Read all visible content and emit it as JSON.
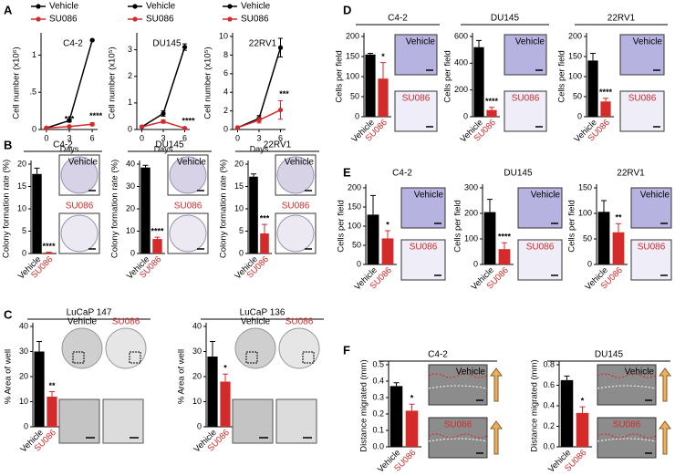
{
  "panel_letters": [
    "A",
    "B",
    "C",
    "D",
    "E",
    "F"
  ],
  "chart_data": [
    {
      "type": "line",
      "title": "C4-2",
      "ylabel": "Cell number (x10⁶)",
      "xlabel": "Days",
      "x": [
        0,
        3,
        6
      ],
      "xlim": [
        -0.7,
        6.7
      ],
      "xticks": [
        0,
        3,
        6
      ],
      "ylim": [
        0,
        1.25
      ],
      "yticks": [
        0,
        {
          "value": 0.5,
          "label": ".5"
        },
        1
      ],
      "series": [
        {
          "name": "Vehicle",
          "color": "#000000",
          "values": [
            0.02,
            0.12,
            1.2
          ],
          "errors": [
            0,
            0.02,
            0.01
          ]
        },
        {
          "name": "SU086",
          "color": "#d42a2a",
          "values": [
            0.02,
            0.04,
            0.07
          ],
          "errors": [
            0,
            0.01,
            0.02
          ]
        }
      ],
      "annotations": [
        {
          "x": 3,
          "text": "***"
        },
        {
          "x": 6,
          "text": "****"
        }
      ]
    },
    {
      "type": "line",
      "title": "DU145",
      "ylabel": "Cell number (x10⁵)",
      "xlabel": "Days",
      "x": [
        0,
        3,
        6
      ],
      "xlim": [
        -0.7,
        6.7
      ],
      "xticks": [
        0,
        3,
        6
      ],
      "ylim": [
        0,
        3.5
      ],
      "yticks": [
        0,
        1,
        2,
        3
      ],
      "series": [
        {
          "name": "Vehicle",
          "color": "#000000",
          "values": [
            0.1,
            0.6,
            3.1
          ],
          "errors": [
            0,
            0.1,
            0.12
          ]
        },
        {
          "name": "SU086",
          "color": "#d42a2a",
          "values": [
            0.1,
            0.3,
            0.05
          ],
          "errors": [
            0,
            0.06,
            0.02
          ]
        }
      ],
      "annotations": [
        {
          "x": 6,
          "text": "****"
        }
      ]
    },
    {
      "type": "line",
      "title": "22RV1",
      "ylabel": "Cell number (x10⁵)",
      "xlabel": "Days",
      "x": [
        0,
        3,
        6
      ],
      "xlim": [
        -0.7,
        6.7
      ],
      "xticks": [
        0,
        3,
        6
      ],
      "ylim": [
        0,
        10
      ],
      "yticks": [
        0,
        2,
        4,
        6,
        8,
        10
      ],
      "series": [
        {
          "name": "Vehicle",
          "color": "#000000",
          "values": [
            0.2,
            1.2,
            8.8
          ],
          "errors": [
            0,
            0.3,
            1.0
          ]
        },
        {
          "name": "SU086",
          "color": "#d42a2a",
          "values": [
            0.2,
            1.0,
            2.1
          ],
          "errors": [
            0,
            0.3,
            1.0
          ]
        }
      ],
      "annotations": [
        {
          "x": 6,
          "text": "***"
        }
      ]
    },
    {
      "type": "bar",
      "title": "C4-2",
      "ylabel": "Colony formation rate (%)",
      "categories": [
        "Vehicle",
        "SU086"
      ],
      "colors": [
        "#000000",
        "#d42a2a"
      ],
      "values": [
        17.8,
        0.2
      ],
      "errors": [
        1.3,
        0.1
      ],
      "annotations": [
        "",
        "****"
      ],
      "ylim": [
        0,
        20
      ],
      "yticks": [
        0,
        5,
        10,
        15,
        20
      ],
      "image_labels": [
        "Vehicle",
        "SU086"
      ]
    },
    {
      "type": "bar",
      "title": "DU145",
      "ylabel": "Colony formation rate (%)",
      "categories": [
        "Vehicle",
        "SU086"
      ],
      "colors": [
        "#000000",
        "#d42a2a"
      ],
      "values": [
        38.5,
        6.5
      ],
      "errors": [
        1.0,
        0.8
      ],
      "annotations": [
        "",
        "****"
      ],
      "ylim": [
        0,
        40
      ],
      "yticks": [
        0,
        10,
        20,
        30,
        40
      ],
      "image_labels": [
        "Vehicle",
        "SU086"
      ]
    },
    {
      "type": "bar",
      "title": "22RV1",
      "ylabel": "Colony formation rate (%)",
      "categories": [
        "Vehicle",
        "SU086"
      ],
      "colors": [
        "#000000",
        "#d42a2a"
      ],
      "values": [
        17.2,
        4.5
      ],
      "errors": [
        0.6,
        2.0
      ],
      "annotations": [
        "",
        "***"
      ],
      "ylim": [
        0,
        20
      ],
      "yticks": [
        0,
        5,
        10,
        15,
        20
      ],
      "image_labels": [
        "Vehicle",
        "SU086"
      ]
    },
    {
      "type": "bar",
      "title": "LuCaP 147",
      "ylabel": "% Area of well",
      "categories": [
        "Vehicle",
        "SU086"
      ],
      "colors": [
        "#000000",
        "#d42a2a"
      ],
      "values": [
        30,
        12
      ],
      "errors": [
        4,
        2
      ],
      "annotations": [
        "",
        "**"
      ],
      "ylim": [
        0,
        40
      ],
      "yticks": [
        0,
        10,
        20,
        30,
        40
      ],
      "image_labels": [
        "Vehicle",
        "SU086"
      ]
    },
    {
      "type": "bar",
      "title": "LuCaP 136",
      "ylabel": "% Area of well",
      "categories": [
        "Vehicle",
        "SU086"
      ],
      "colors": [
        "#000000",
        "#d42a2a"
      ],
      "values": [
        28,
        18
      ],
      "errors": [
        6,
        3
      ],
      "annotations": [
        "",
        "*"
      ],
      "ylim": [
        0,
        40
      ],
      "yticks": [
        0,
        10,
        20,
        30,
        40
      ],
      "image_labels": [
        "Vehicle",
        "SU086"
      ]
    },
    {
      "type": "bar",
      "title": "C4-2",
      "ylabel": "Cells per field",
      "categories": [
        "Vehicle",
        "SU086"
      ],
      "colors": [
        "#000000",
        "#d42a2a"
      ],
      "values": [
        155,
        95
      ],
      "errors": [
        3,
        40
      ],
      "annotations": [
        "",
        "*"
      ],
      "ylim": [
        0,
        200
      ],
      "yticks": [
        0,
        50,
        100,
        150,
        200
      ],
      "image_labels": [
        "Vehicle",
        "SU086"
      ]
    },
    {
      "type": "bar",
      "title": "DU145",
      "ylabel": "Cells per field",
      "categories": [
        "Vehicle",
        "SU086"
      ],
      "colors": [
        "#000000",
        "#d42a2a"
      ],
      "values": [
        520,
        50
      ],
      "errors": [
        50,
        20
      ],
      "annotations": [
        "",
        "****"
      ],
      "ylim": [
        0,
        600
      ],
      "yticks": [
        0,
        200,
        400,
        600
      ],
      "image_labels": [
        "Vehicle",
        "SU086"
      ]
    },
    {
      "type": "bar",
      "title": "22RV1",
      "ylabel": "Cells per field",
      "categories": [
        "Vehicle",
        "SU086"
      ],
      "colors": [
        "#000000",
        "#d42a2a"
      ],
      "values": [
        140,
        38
      ],
      "errors": [
        18,
        8
      ],
      "annotations": [
        "",
        "****"
      ],
      "ylim": [
        0,
        200
      ],
      "yticks": [
        0,
        50,
        100,
        150,
        200
      ],
      "image_labels": [
        "Vehicle",
        "SU086"
      ]
    },
    {
      "type": "bar",
      "title": "C4-2",
      "ylabel": "Cells per field",
      "categories": [
        "Vehicle",
        "SU086"
      ],
      "colors": [
        "#000000",
        "#d42a2a"
      ],
      "values": [
        130,
        68
      ],
      "errors": [
        50,
        20
      ],
      "annotations": [
        "",
        "*"
      ],
      "ylim": [
        0,
        200
      ],
      "yticks": [
        0,
        50,
        100,
        150,
        200
      ],
      "image_labels": [
        "Vehicle",
        "SU086"
      ]
    },
    {
      "type": "bar",
      "title": "DU145",
      "ylabel": "Cells per field",
      "categories": [
        "Vehicle",
        "SU086"
      ],
      "colors": [
        "#000000",
        "#d42a2a"
      ],
      "values": [
        205,
        60
      ],
      "errors": [
        50,
        25
      ],
      "annotations": [
        "",
        "****"
      ],
      "ylim": [
        0,
        300
      ],
      "yticks": [
        0,
        100,
        200,
        300
      ],
      "image_labels": [
        "Vehicle",
        "SU086"
      ]
    },
    {
      "type": "bar",
      "title": "22RV1",
      "ylabel": "Cells per field",
      "categories": [
        "Vehicle",
        "SU086"
      ],
      "colors": [
        "#000000",
        "#d42a2a"
      ],
      "values": [
        103,
        63
      ],
      "errors": [
        22,
        17
      ],
      "annotations": [
        "",
        "**"
      ],
      "ylim": [
        0,
        150
      ],
      "yticks": [
        0,
        50,
        100,
        150
      ],
      "image_labels": [
        "Vehicle",
        "SU086"
      ]
    },
    {
      "type": "bar",
      "title": "C4-2",
      "ylabel": "Distance migrated (mm)",
      "categories": [
        "Vehicle",
        "SU086"
      ],
      "colors": [
        "#000000",
        "#d42a2a"
      ],
      "values": [
        0.37,
        0.22
      ],
      "errors": [
        0.02,
        0.04
      ],
      "annotations": [
        "",
        "*"
      ],
      "ylim": [
        0,
        0.5
      ],
      "yticks": [
        {
          "value": 0,
          "label": "0.0"
        },
        0.1,
        0.2,
        0.3,
        0.4,
        0.5
      ],
      "image_labels": [
        "Vehicle",
        "SU086"
      ]
    },
    {
      "type": "bar",
      "title": "DU145",
      "ylabel": "Distance migrated (mm)",
      "categories": [
        "Vehicle",
        "SU086"
      ],
      "colors": [
        "#000000",
        "#d42a2a"
      ],
      "values": [
        0.65,
        0.33
      ],
      "errors": [
        0.04,
        0.06
      ],
      "annotations": [
        "",
        "*"
      ],
      "ylim": [
        0,
        0.8
      ],
      "yticks": [
        {
          "value": 0,
          "label": "0.0"
        },
        0.2,
        0.4,
        0.6,
        0.8
      ],
      "image_labels": [
        "Vehicle",
        "SU086"
      ]
    }
  ]
}
